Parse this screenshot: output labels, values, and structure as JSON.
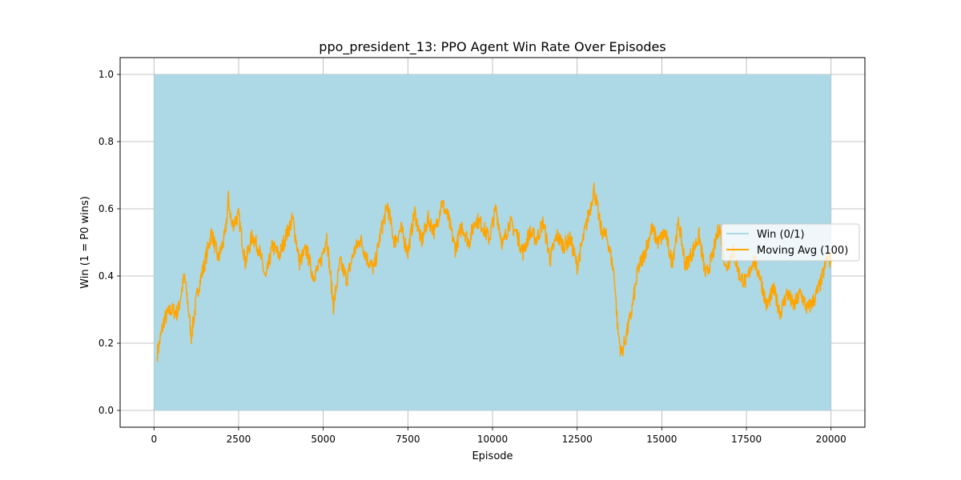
{
  "chart_data": {
    "type": "line",
    "title": "ppo_president_13: PPO Agent Win Rate Over Episodes",
    "xlabel": "Episode",
    "ylabel": "Win (1 = P0 wins)",
    "xlim": [
      -1000,
      21000
    ],
    "ylim": [
      -0.05,
      1.05
    ],
    "xticks": [
      0,
      2500,
      5000,
      7500,
      10000,
      12500,
      15000,
      17500,
      20000
    ],
    "yticks": [
      0.0,
      0.2,
      0.4,
      0.6,
      0.8,
      1.0
    ],
    "xtick_labels": [
      "0",
      "2500",
      "5000",
      "7500",
      "10000",
      "12500",
      "15000",
      "17500",
      "20000"
    ],
    "ytick_labels": [
      "0.0",
      "0.2",
      "0.4",
      "0.6",
      "0.8",
      "1.0"
    ],
    "grid": true,
    "legend_position": "center-right",
    "series": [
      {
        "name": "Win (0/1)",
        "color": "#add8e6",
        "style": "dense-binary",
        "x_range": [
          0,
          20000
        ],
        "values_range": [
          0,
          1
        ]
      },
      {
        "name": "Moving Avg (100)",
        "color": "#ffa500",
        "x": [
          100,
          300,
          500,
          700,
          900,
          1000,
          1100,
          1300,
          1500,
          1700,
          1900,
          2100,
          2200,
          2300,
          2500,
          2700,
          2900,
          3100,
          3300,
          3500,
          3700,
          3900,
          4100,
          4300,
          4500,
          4700,
          4900,
          5100,
          5300,
          5500,
          5700,
          5900,
          6100,
          6300,
          6500,
          6700,
          6900,
          7100,
          7300,
          7500,
          7700,
          7900,
          8100,
          8300,
          8500,
          8700,
          8900,
          9100,
          9300,
          9500,
          9700,
          9900,
          10100,
          10300,
          10500,
          10700,
          10900,
          11100,
          11300,
          11500,
          11700,
          11900,
          12100,
          12300,
          12500,
          12700,
          12900,
          13000,
          13200,
          13400,
          13600,
          13700,
          13800,
          13900,
          14100,
          14300,
          14500,
          14700,
          14900,
          15100,
          15300,
          15500,
          15700,
          15900,
          16100,
          16300,
          16500,
          16700,
          16900,
          17100,
          17300,
          17500,
          17700,
          17900,
          18100,
          18300,
          18500,
          18700,
          18900,
          19100,
          19300,
          19500,
          19700,
          19900,
          20000
        ],
        "y": [
          0.17,
          0.27,
          0.3,
          0.29,
          0.4,
          0.32,
          0.22,
          0.36,
          0.44,
          0.53,
          0.45,
          0.52,
          0.63,
          0.55,
          0.58,
          0.44,
          0.52,
          0.48,
          0.39,
          0.49,
          0.46,
          0.52,
          0.57,
          0.44,
          0.48,
          0.4,
          0.43,
          0.52,
          0.31,
          0.44,
          0.39,
          0.47,
          0.51,
          0.45,
          0.42,
          0.53,
          0.61,
          0.5,
          0.54,
          0.47,
          0.59,
          0.5,
          0.57,
          0.53,
          0.62,
          0.57,
          0.48,
          0.55,
          0.5,
          0.57,
          0.55,
          0.51,
          0.6,
          0.49,
          0.56,
          0.53,
          0.47,
          0.53,
          0.51,
          0.56,
          0.45,
          0.52,
          0.49,
          0.51,
          0.43,
          0.52,
          0.61,
          0.66,
          0.54,
          0.51,
          0.4,
          0.24,
          0.17,
          0.2,
          0.29,
          0.42,
          0.47,
          0.54,
          0.5,
          0.53,
          0.44,
          0.56,
          0.43,
          0.47,
          0.52,
          0.4,
          0.46,
          0.55,
          0.42,
          0.48,
          0.4,
          0.38,
          0.45,
          0.4,
          0.31,
          0.36,
          0.29,
          0.35,
          0.31,
          0.35,
          0.3,
          0.33,
          0.38,
          0.46,
          0.44
        ]
      }
    ]
  }
}
